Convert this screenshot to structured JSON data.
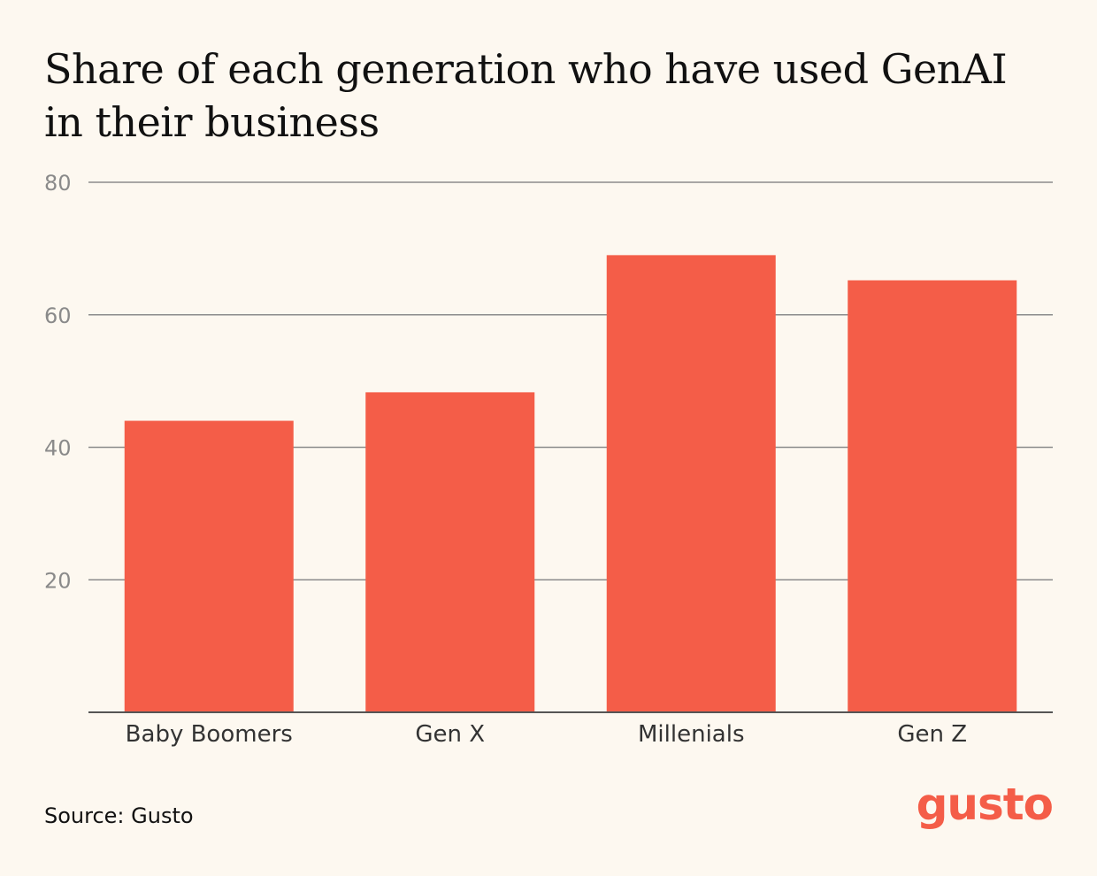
{
  "chart_data": {
    "type": "bar",
    "title": "Share of each generation who have used GenAI in their business",
    "categories": [
      "Baby Boomers",
      "Gen X",
      "Millenials",
      "Gen Z"
    ],
    "values": [
      44,
      48.3,
      69,
      65.2
    ],
    "ylim": [
      0,
      80
    ],
    "yticks": [
      20,
      40,
      60,
      80
    ],
    "xlabel": "",
    "ylabel": "",
    "grid": true,
    "bar_color": "#f45d48",
    "grid_color": "#8c8c8c"
  },
  "footer": {
    "source": "Source: Gusto",
    "logo": "gusto"
  },
  "colors": {
    "background": "#fdf8f0",
    "accent": "#f45d48"
  }
}
